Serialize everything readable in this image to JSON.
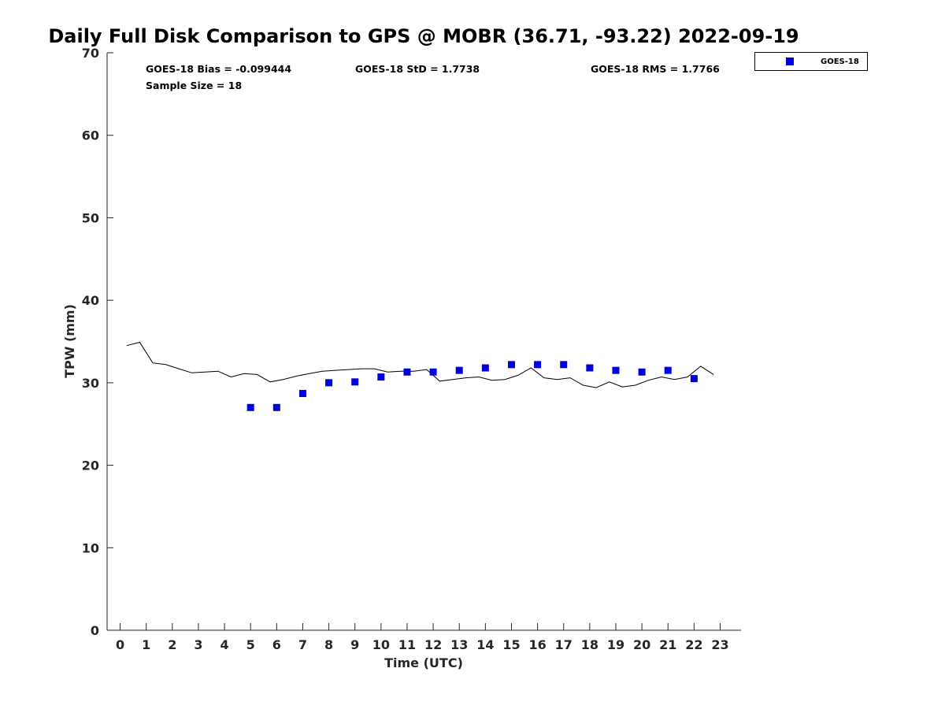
{
  "chart_data": {
    "type": "scatter",
    "title": "Daily Full Disk Comparison to GPS @ MOBR (36.71, -93.22) 2022-09-19",
    "xlabel": "Time (UTC)",
    "ylabel": "TPW (mm)",
    "xlim": [
      -0.5,
      23.8
    ],
    "ylim": [
      0,
      70
    ],
    "x_ticks": [
      0,
      1,
      2,
      3,
      4,
      5,
      6,
      7,
      8,
      9,
      10,
      11,
      12,
      13,
      14,
      15,
      16,
      17,
      18,
      19,
      20,
      21,
      22,
      23
    ],
    "y_ticks": [
      0,
      10,
      20,
      30,
      40,
      50,
      60,
      70
    ],
    "grid": false,
    "legend_position": "top-right",
    "stats": {
      "bias": "GOES-18 Bias = -0.099444",
      "std": "GOES-18 StD = 1.7738",
      "rms": "GOES-18 RMS = 1.7766",
      "sample_size": "Sample Size = 18"
    },
    "series": [
      {
        "name": "GOES-18",
        "kind": "scatter",
        "color": "#0000dd",
        "x": [
          5,
          6,
          7,
          8,
          9,
          10,
          11,
          12,
          13,
          14,
          15,
          16,
          17,
          18,
          19,
          20,
          21,
          22
        ],
        "y": [
          27.0,
          27.0,
          28.7,
          30.0,
          30.1,
          30.7,
          31.3,
          31.3,
          31.5,
          31.8,
          32.2,
          32.2,
          32.2,
          31.8,
          31.5,
          31.3,
          31.5,
          30.5
        ]
      },
      {
        "kind": "line",
        "color": "#000000",
        "x": [
          0.25,
          0.75,
          1.25,
          1.75,
          2.25,
          2.75,
          3.25,
          3.75,
          4.25,
          4.75,
          5.25,
          5.75,
          6.25,
          6.75,
          7.25,
          7.75,
          8.25,
          8.75,
          9.25,
          9.75,
          10.25,
          10.75,
          11.25,
          11.75,
          12.25,
          12.75,
          13.25,
          13.75,
          14.25,
          14.75,
          15.25,
          15.75,
          16.25,
          16.75,
          17.25,
          17.75,
          18.25,
          18.75,
          19.25,
          19.75,
          20.25,
          20.75,
          21.25,
          21.75,
          22.25,
          22.75
        ],
        "y": [
          34.5,
          34.9,
          32.4,
          32.2,
          31.7,
          31.2,
          31.3,
          31.4,
          30.7,
          31.1,
          31.0,
          30.1,
          30.4,
          30.8,
          31.1,
          31.4,
          31.5,
          31.6,
          31.7,
          31.7,
          31.3,
          31.4,
          31.4,
          31.6,
          30.2,
          30.4,
          30.6,
          30.7,
          30.3,
          30.4,
          30.9,
          31.8,
          30.6,
          30.4,
          30.6,
          29.7,
          29.4,
          30.1,
          29.5,
          29.7,
          30.3,
          30.7,
          30.4,
          30.7,
          32.0,
          31.0
        ]
      }
    ]
  }
}
